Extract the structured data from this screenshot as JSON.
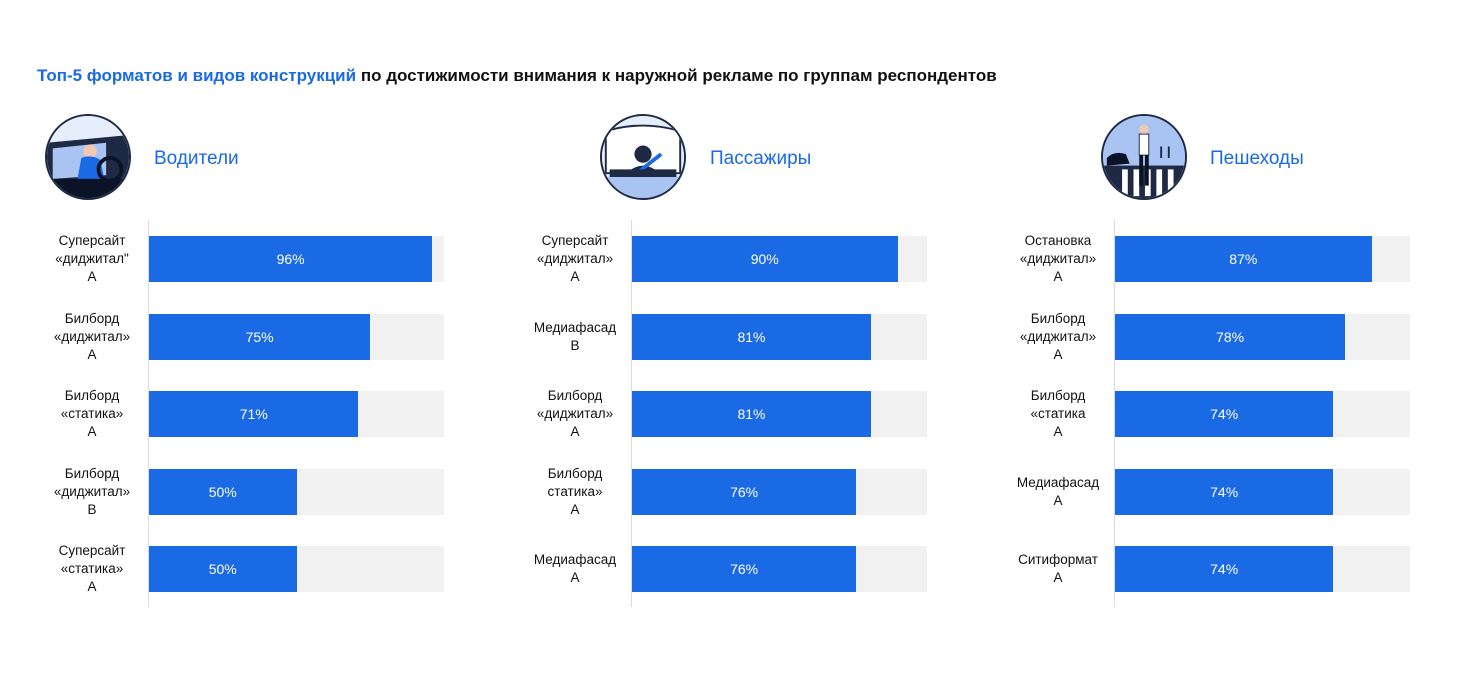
{
  "header": {
    "title_accent": "Топ-5 форматов и видов конструкций",
    "title_rest": " по достижимости внимания к наружной рекламе по группам респондентов"
  },
  "colors": {
    "accent": "#1a6ae6",
    "track": "#f1f1f1",
    "text": "#111111"
  },
  "chart_data": [
    {
      "type": "bar",
      "orientation": "horizontal",
      "title": "Водители",
      "icon": "driver-illustration",
      "xlim": [
        0,
        100
      ],
      "categories": [
        [
          "Суперсайт",
          "«диджитал\"",
          "A"
        ],
        [
          "Билборд",
          "«диджитал»",
          "A"
        ],
        [
          "Билборд",
          "«статика»",
          "A"
        ],
        [
          "Билборд",
          "«диджитал»",
          "B"
        ],
        [
          "Суперсайт",
          "«статика»",
          "A"
        ]
      ],
      "values": [
        96,
        75,
        71,
        50,
        50
      ],
      "labels": [
        "96%",
        "75%",
        "71%",
        "50%",
        "50%"
      ]
    },
    {
      "type": "bar",
      "orientation": "horizontal",
      "title": "Пассажиры",
      "icon": "passenger-illustration",
      "xlim": [
        0,
        100
      ],
      "categories": [
        [
          "Суперсайт",
          "«диджитал»",
          "A"
        ],
        [
          "Медиафасад",
          "B"
        ],
        [
          "Билборд",
          "«диджитал»",
          "A"
        ],
        [
          "Билборд",
          "статика»",
          "A"
        ],
        [
          "Медиафасад",
          "A"
        ]
      ],
      "values": [
        90,
        81,
        81,
        76,
        76
      ],
      "labels": [
        "90%",
        "81%",
        "81%",
        "76%",
        "76%"
      ]
    },
    {
      "type": "bar",
      "orientation": "horizontal",
      "title": "Пешеходы",
      "icon": "pedestrian-illustration",
      "xlim": [
        0,
        100
      ],
      "categories": [
        [
          "Остановка",
          "«диджитал»",
          "A"
        ],
        [
          "Билборд",
          "«диджитал»",
          "A"
        ],
        [
          "Билборд",
          "«статика",
          "A"
        ],
        [
          "Медиафасад",
          "A"
        ],
        [
          "Ситиформат",
          "A"
        ]
      ],
      "values": [
        87,
        78,
        74,
        74,
        74
      ],
      "labels": [
        "87%",
        "78%",
        "74%",
        "74%",
        "74%"
      ]
    }
  ]
}
